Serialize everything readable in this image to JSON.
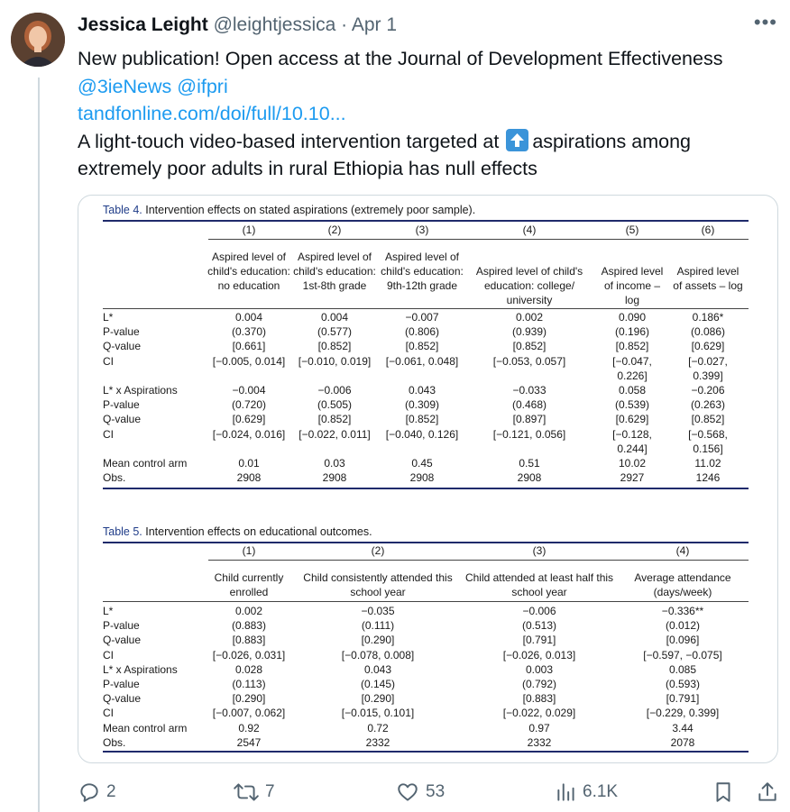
{
  "tweet": {
    "author_name": "Jessica Leight",
    "handle": "@leightjessica",
    "separator": "·",
    "date": "Apr 1",
    "more_label": "•••",
    "line1": "New publication!  Open access at the Journal of Development Effectiveness",
    "mentions": "@3ieNews @ifpri",
    "link": "tandfonline.com/doi/full/10.10...",
    "line3a": "A light-touch video-based intervention targeted at",
    "line3b": "aspirations among",
    "line4": "extremely poor adults in rural Ethiopia has null effects"
  },
  "table4": {
    "label": "Table 4.",
    "title": " Intervention effects on stated aspirations (extremely poor sample).",
    "col_nums": [
      "(1)",
      "(2)",
      "(3)",
      "(4)",
      "(5)",
      "(6)"
    ],
    "col_heads": [
      "Aspired level of child's education: no education",
      "Aspired level of child's education: 1st-8th grade",
      "Aspired level of child's education: 9th-12th grade",
      "Aspired level of child's education: college/ university",
      "Aspired level of income – log",
      "Aspired level of assets – log"
    ],
    "rows": [
      {
        "label": "L*",
        "vals": [
          "0.004",
          "0.004",
          "−0.007",
          "0.002",
          "0.090",
          "0.186*"
        ]
      },
      {
        "label": "P-value",
        "vals": [
          "(0.370)",
          "(0.577)",
          "(0.806)",
          "(0.939)",
          "(0.196)",
          "(0.086)"
        ]
      },
      {
        "label": "Q-value",
        "vals": [
          "[0.661]",
          "[0.852]",
          "[0.852]",
          "[0.852]",
          "[0.852]",
          "[0.629]"
        ]
      },
      {
        "label": "CI",
        "vals": [
          "[−0.005, 0.014]",
          "[−0.010, 0.019]",
          "[−0.061, 0.048]",
          "[−0.053, 0.057]",
          "[−0.047,",
          "[−0.027,"
        ]
      },
      {
        "label": "",
        "vals": [
          "",
          "",
          "",
          "",
          "0.226]",
          "0.399]"
        ]
      },
      {
        "label": "L* x Aspirations",
        "vals": [
          "−0.004",
          "−0.006",
          "0.043",
          "−0.033",
          "0.058",
          "−0.206"
        ]
      },
      {
        "label": "P-value",
        "vals": [
          "(0.720)",
          "(0.505)",
          "(0.309)",
          "(0.468)",
          "(0.539)",
          "(0.263)"
        ]
      },
      {
        "label": "Q-value",
        "vals": [
          "[0.629]",
          "[0.852]",
          "[0.852]",
          "[0.897]",
          "[0.629]",
          "[0.852]"
        ]
      },
      {
        "label": "CI",
        "vals": [
          "[−0.024, 0.016]",
          "[−0.022, 0.011]",
          "[−0.040, 0.126]",
          "[−0.121, 0.056]",
          "[−0.128,",
          "[−0.568,"
        ]
      },
      {
        "label": "",
        "vals": [
          "",
          "",
          "",
          "",
          "0.244]",
          "0.156]"
        ]
      },
      {
        "label": "Mean control arm",
        "vals": [
          "0.01",
          "0.03",
          "0.45",
          "0.51",
          "10.02",
          "11.02"
        ]
      },
      {
        "label": "Obs.",
        "vals": [
          "2908",
          "2908",
          "2908",
          "2908",
          "2927",
          "1246"
        ]
      }
    ]
  },
  "table5": {
    "label": "Table 5.",
    "title": " Intervention effects on educational outcomes.",
    "col_nums": [
      "(1)",
      "(2)",
      "(3)",
      "(4)"
    ],
    "col_heads": [
      "Child currently enrolled",
      "Child consistently attended this school year",
      "Child attended at least half this school year",
      "Average attendance (days/week)"
    ],
    "rows": [
      {
        "label": "L*",
        "vals": [
          "0.002",
          "−0.035",
          "−0.006",
          "−0.336**"
        ]
      },
      {
        "label": "P-value",
        "vals": [
          "(0.883)",
          "(0.111)",
          "(0.513)",
          "(0.012)"
        ]
      },
      {
        "label": "Q-value",
        "vals": [
          "[0.883]",
          "[0.290]",
          "[0.791]",
          "[0.096]"
        ]
      },
      {
        "label": "CI",
        "vals": [
          "[−0.026, 0.031]",
          "[−0.078, 0.008]",
          "[−0.026, 0.013]",
          "[−0.597, −0.075]"
        ]
      },
      {
        "label": "L* x Aspirations",
        "vals": [
          "0.028",
          "0.043",
          "0.003",
          "0.085"
        ]
      },
      {
        "label": "P-value",
        "vals": [
          "(0.113)",
          "(0.145)",
          "(0.792)",
          "(0.593)"
        ]
      },
      {
        "label": "Q-value",
        "vals": [
          "[0.290]",
          "[0.290]",
          "[0.883]",
          "[0.791]"
        ]
      },
      {
        "label": "CI",
        "vals": [
          "[−0.007, 0.062]",
          "[−0.015, 0.101]",
          "[−0.022, 0.029]",
          "[−0.229, 0.399]"
        ]
      },
      {
        "label": "Mean control arm",
        "vals": [
          "0.92",
          "0.72",
          "0.97",
          "3.44"
        ]
      },
      {
        "label": "Obs.",
        "vals": [
          "2547",
          "2332",
          "2332",
          "2078"
        ]
      }
    ]
  },
  "actions": {
    "replies": "2",
    "reposts": "7",
    "likes": "53",
    "views": "6.1K"
  },
  "colors": {
    "link": "#1d9bf0",
    "muted": "#536471",
    "table_rule": "#1f2a6b"
  }
}
